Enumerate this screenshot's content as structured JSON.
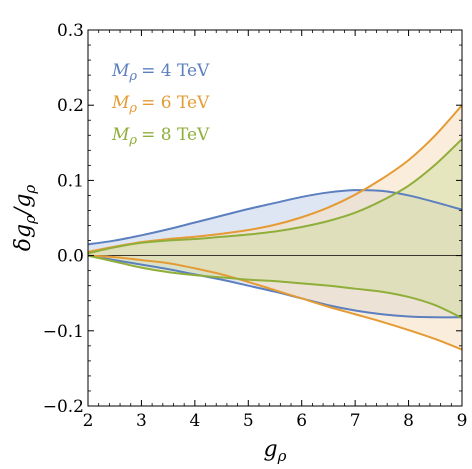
{
  "chart_data": {
    "type": "area",
    "title": "",
    "xlabel": "g",
    "xlabel_sub": "ρ",
    "ylabel": "δg",
    "ylabel_sub": "ρ",
    "ylabel_sep": "/g",
    "ylabel_sub2": "ρ",
    "xlim": [
      2,
      9
    ],
    "ylim": [
      -0.2,
      0.3
    ],
    "x_ticks": [
      "2",
      "3",
      "4",
      "5",
      "6",
      "7",
      "8",
      "9"
    ],
    "y_ticks": [
      "0.3",
      "0.2",
      "0.1",
      "0.0",
      "−0.1",
      "−0.2"
    ],
    "y_tick_values": [
      0.3,
      0.2,
      0.1,
      0.0,
      -0.1,
      -0.2
    ],
    "legend_placement": "top-left",
    "grid": false,
    "series": [
      {
        "name": "M",
        "name_sub": "ρ",
        "name_value": "= 4 TeV",
        "color": "#5b7fbf",
        "fill": "#c5d2ea",
        "x": [
          2.0,
          2.5,
          3.0,
          3.5,
          4.0,
          4.5,
          5.0,
          5.5,
          6.0,
          6.5,
          7.0,
          7.5,
          8.0,
          8.5,
          9.0
        ],
        "upper": [
          0.015,
          0.02,
          0.027,
          0.035,
          0.044,
          0.053,
          0.062,
          0.07,
          0.078,
          0.084,
          0.087,
          0.086,
          0.08,
          0.071,
          0.061
        ],
        "lower": [
          0.0,
          -0.006,
          -0.012,
          -0.018,
          -0.025,
          -0.032,
          -0.04,
          -0.048,
          -0.057,
          -0.066,
          -0.073,
          -0.078,
          -0.081,
          -0.082,
          -0.082
        ]
      },
      {
        "name": "M",
        "name_sub": "ρ",
        "name_value": "= 6 TeV",
        "color": "#e59b35",
        "fill": "#f7dfbe",
        "x": [
          2.0,
          2.5,
          3.0,
          3.5,
          4.0,
          4.5,
          5.0,
          5.5,
          6.0,
          6.5,
          7.0,
          7.5,
          8.0,
          8.5,
          9.0
        ],
        "upper": [
          0.005,
          0.012,
          0.018,
          0.022,
          0.025,
          0.029,
          0.034,
          0.041,
          0.051,
          0.064,
          0.081,
          0.102,
          0.127,
          0.16,
          0.2
        ],
        "lower": [
          0.0,
          -0.002,
          -0.006,
          -0.01,
          -0.017,
          -0.025,
          -0.035,
          -0.046,
          -0.057,
          -0.068,
          -0.078,
          -0.088,
          -0.099,
          -0.111,
          -0.125
        ]
      },
      {
        "name": "M",
        "name_sub": "ρ",
        "name_value": "= 8 TeV",
        "color": "#8fae3a",
        "fill": "#d4dfa5",
        "x": [
          2.0,
          2.5,
          3.0,
          3.5,
          4.0,
          4.5,
          5.0,
          5.5,
          6.0,
          6.5,
          7.0,
          7.5,
          8.0,
          8.5,
          9.0
        ],
        "upper": [
          0.003,
          0.011,
          0.017,
          0.02,
          0.022,
          0.025,
          0.028,
          0.032,
          0.038,
          0.046,
          0.057,
          0.073,
          0.093,
          0.121,
          0.155
        ],
        "lower": [
          0.0,
          -0.008,
          -0.016,
          -0.022,
          -0.026,
          -0.029,
          -0.032,
          -0.034,
          -0.037,
          -0.04,
          -0.044,
          -0.048,
          -0.055,
          -0.066,
          -0.083
        ]
      }
    ]
  }
}
